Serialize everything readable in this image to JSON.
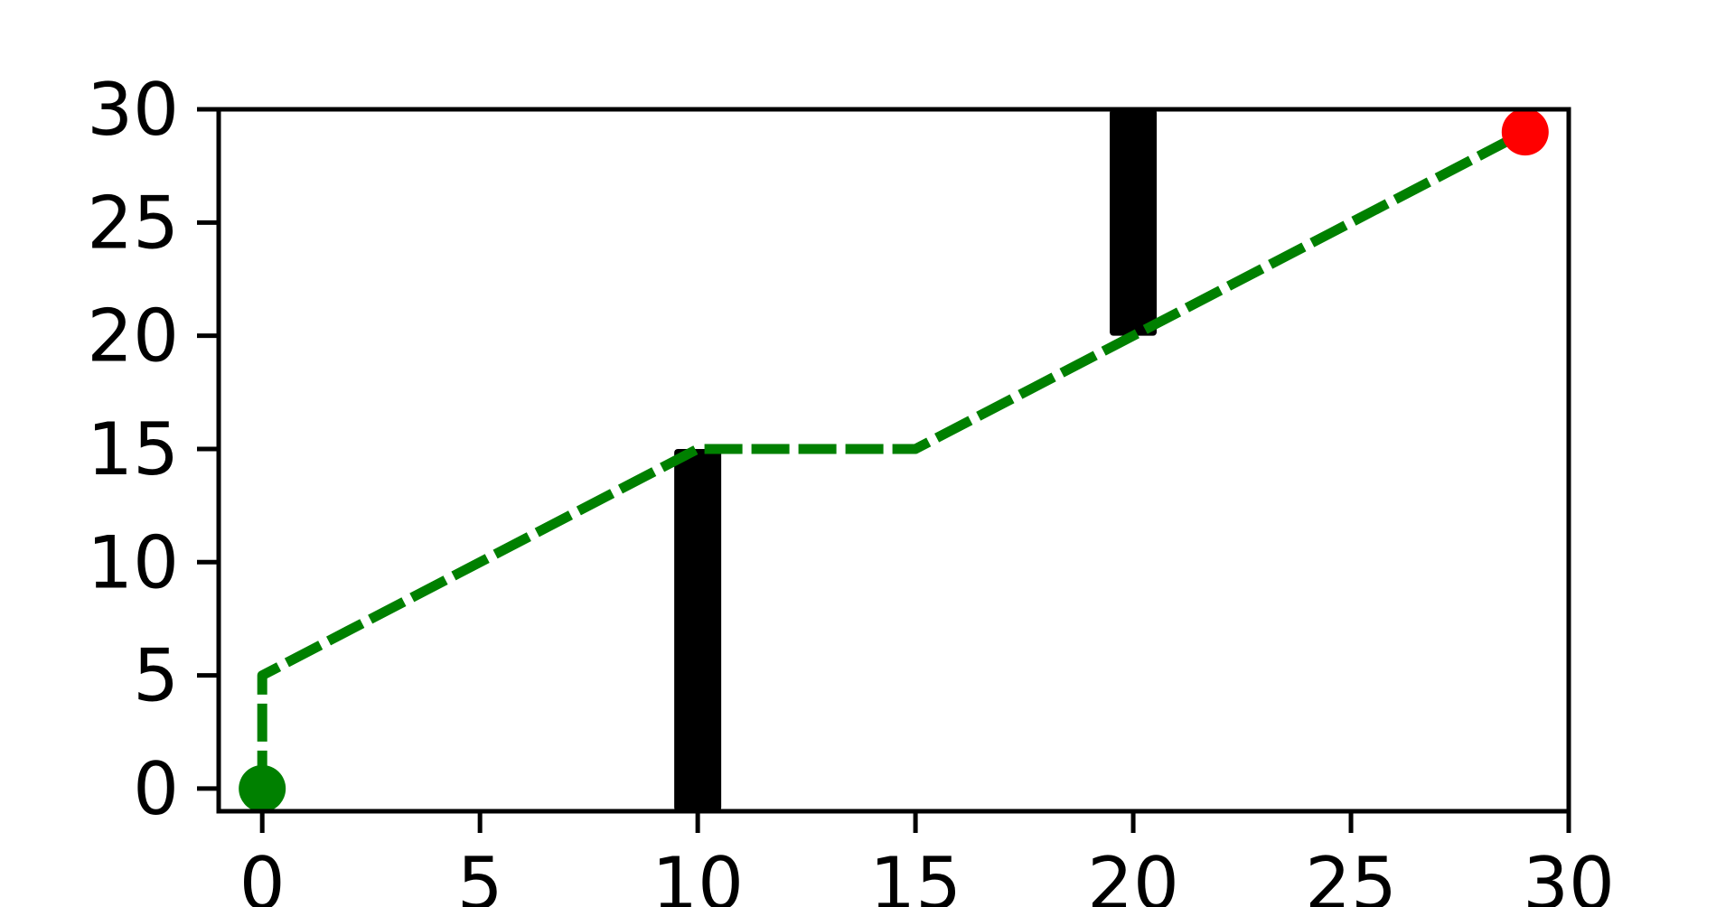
{
  "chart_data": {
    "type": "line",
    "title": "",
    "xlabel": "",
    "ylabel": "",
    "xlim": [
      -1,
      30
    ],
    "ylim": [
      -1,
      30
    ],
    "xticks": [
      0,
      5,
      10,
      15,
      20,
      25,
      30
    ],
    "yticks": [
      0,
      5,
      10,
      15,
      20,
      25,
      30
    ],
    "xtick_labels": [
      "0",
      "5",
      "10",
      "15",
      "20",
      "25",
      "30"
    ],
    "ytick_labels": [
      "0",
      "5",
      "10",
      "15",
      "20",
      "25",
      "30"
    ],
    "grid": false,
    "legend": "none",
    "obstacles": [
      {
        "x": 10,
        "y_from": -1,
        "y_to": 15,
        "color": "#000000"
      },
      {
        "x": 20,
        "y_from": 20,
        "y_to": 30,
        "color": "#000000"
      }
    ],
    "series": [
      {
        "x": [
          0,
          0,
          10,
          15,
          29
        ],
        "y": [
          0,
          5,
          15,
          15,
          29
        ],
        "color": "#008000",
        "style": "dashed"
      }
    ],
    "markers": [
      {
        "x": 0,
        "y": 0,
        "color": "#008000"
      },
      {
        "x": 29,
        "y": 29,
        "color": "#ff0000"
      }
    ]
  }
}
